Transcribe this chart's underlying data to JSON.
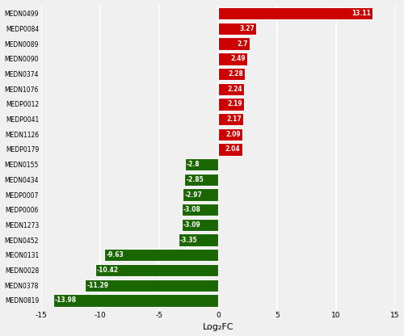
{
  "categories": [
    "MEDN0499",
    "MEDP0084",
    "MEDN0089",
    "MEDN0090",
    "MEDN0374",
    "MEDN1076",
    "MEDP0012",
    "MEDP0041",
    "MEDN1126",
    "MEDP0179",
    "MEDN0155",
    "MEDN0434",
    "MEDP0007",
    "MEDP0006",
    "MEDN1273",
    "MEDN0452",
    "MEON0131",
    "MEDN0028",
    "MEDN0378",
    "MEDN0819"
  ],
  "values": [
    13.11,
    3.27,
    2.7,
    2.49,
    2.28,
    2.24,
    2.19,
    2.17,
    2.09,
    2.04,
    -2.8,
    -2.85,
    -2.97,
    -3.08,
    -3.09,
    -3.35,
    -9.63,
    -10.42,
    -11.29,
    -13.98
  ],
  "bar_color_positive": "#cc0000",
  "bar_color_negative": "#1a6600",
  "label_color": "#ffffff",
  "xlabel": "Log₂FC",
  "xlim": [
    -15,
    15
  ],
  "xticks": [
    -15,
    -10,
    -5,
    0,
    5,
    10,
    15
  ],
  "background_color": "#f0f0f0",
  "grid_color": "#ffffff",
  "ytick_fontsize": 5.5,
  "value_fontsize": 5.5,
  "xlabel_fontsize": 8,
  "xtick_fontsize": 6.5,
  "bar_height": 0.82,
  "bar_edge_color": "#ffffff",
  "bar_edge_width": 0.8
}
